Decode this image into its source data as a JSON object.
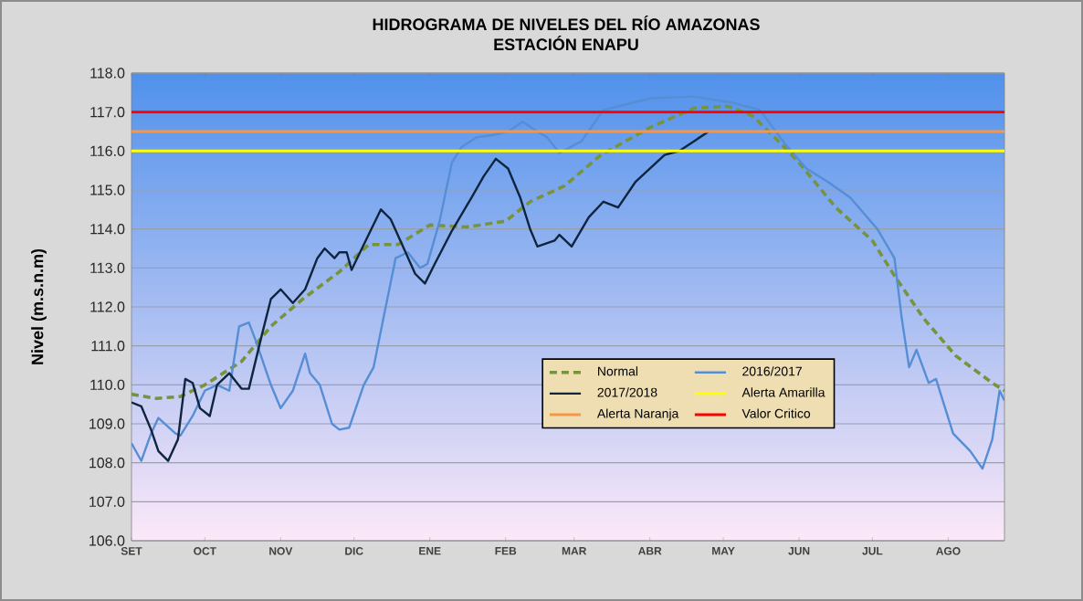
{
  "chart_data": {
    "type": "line",
    "title": "HIDROGRAMA DE NIVELES DEL RÍO AMAZONAS",
    "subtitle": "ESTACIÓN ENAPU",
    "ylabel": "Nivel (m.s.n.m)",
    "xlim": [
      "2017-09-01",
      "2018-08-24"
    ],
    "xticks": [
      {
        "value": "2017-09-01",
        "label": "SET"
      },
      {
        "value": "2017-10-01",
        "label": "OCT"
      },
      {
        "value": "2017-11-01",
        "label": "NOV"
      },
      {
        "value": "2017-12-01",
        "label": "DIC"
      },
      {
        "value": "2018-01-01",
        "label": "ENE"
      },
      {
        "value": "2018-02-01",
        "label": "FEB"
      },
      {
        "value": "2018-03-01",
        "label": "MAR"
      },
      {
        "value": "2018-04-01",
        "label": "ABR"
      },
      {
        "value": "2018-05-01",
        "label": "MAY"
      },
      {
        "value": "2018-06-01",
        "label": "JUN"
      },
      {
        "value": "2018-07-01",
        "label": "JUL"
      },
      {
        "value": "2018-08-01",
        "label": "AGO"
      }
    ],
    "ylim": [
      106,
      118
    ],
    "yticks": [
      {
        "value": 106,
        "label": "106.0"
      },
      {
        "value": 107,
        "label": "107.0"
      },
      {
        "value": 108,
        "label": "108.0"
      },
      {
        "value": 109,
        "label": "109.0"
      },
      {
        "value": 110,
        "label": "110.0"
      },
      {
        "value": 111,
        "label": "111.0"
      },
      {
        "value": 112,
        "label": "112.0"
      },
      {
        "value": 113,
        "label": "113.0"
      },
      {
        "value": 114,
        "label": "114.0"
      },
      {
        "value": 115,
        "label": "115.0"
      },
      {
        "value": 116,
        "label": "116.0"
      },
      {
        "value": 117,
        "label": "117.0"
      },
      {
        "value": 118,
        "label": "118.0"
      }
    ],
    "grid": "y",
    "legend": "bottom right",
    "marker": "none",
    "series": [
      {
        "name": "Normal",
        "color": "#77933c",
        "line_style": "dashed",
        "x": [
          "2017-09-01",
          "2017-09-11",
          "2017-09-21",
          "2017-10-01",
          "2017-10-16",
          "2017-10-28",
          "2017-11-10",
          "2017-11-25",
          "2017-12-07",
          "2017-12-19",
          "2018-01-01",
          "2018-01-16",
          "2018-02-01",
          "2018-02-11",
          "2018-02-25",
          "2018-03-12",
          "2018-04-01",
          "2018-04-19",
          "2018-05-03",
          "2018-05-13",
          "2018-05-22",
          "2018-06-01",
          "2018-06-16",
          "2018-07-01",
          "2018-07-10",
          "2018-07-22",
          "2018-08-04",
          "2018-08-19",
          "2018-08-24"
        ],
        "values": [
          109.76,
          109.65,
          109.7,
          110.0,
          110.6,
          111.5,
          112.2,
          112.9,
          113.6,
          113.6,
          114.1,
          114.05,
          114.2,
          114.7,
          115.1,
          115.9,
          116.6,
          117.1,
          117.15,
          116.9,
          116.35,
          115.7,
          114.55,
          113.7,
          112.8,
          111.7,
          110.75,
          110.05,
          109.85
        ]
      },
      {
        "name": "2016/2017",
        "color": "#558ed5",
        "line_style": "solid",
        "x": [
          "2017-09-01",
          "2017-09-05",
          "2017-09-09",
          "2017-09-12",
          "2017-09-19",
          "2017-09-21",
          "2017-09-26",
          "2017-10-01",
          "2017-10-06",
          "2017-10-11",
          "2017-10-15",
          "2017-10-19",
          "2017-10-22",
          "2017-10-28",
          "2017-11-01",
          "2017-11-06",
          "2017-11-11",
          "2017-11-13",
          "2017-11-17",
          "2017-11-22",
          "2017-11-25",
          "2017-11-29",
          "2017-12-05",
          "2017-12-09",
          "2017-12-13",
          "2017-12-18",
          "2017-12-23",
          "2017-12-28",
          "2017-12-31",
          "2018-01-05",
          "2018-01-10",
          "2018-01-14",
          "2018-01-20",
          "2018-01-26",
          "2018-02-02",
          "2018-02-08",
          "2018-02-14",
          "2018-02-18",
          "2018-02-23",
          "2018-03-04",
          "2018-03-13",
          "2018-04-01",
          "2018-04-19",
          "2018-05-04",
          "2018-05-16",
          "2018-05-26",
          "2018-06-04",
          "2018-06-13",
          "2018-06-22",
          "2018-07-03",
          "2018-07-10",
          "2018-07-13",
          "2018-07-16",
          "2018-07-19",
          "2018-07-24",
          "2018-07-27",
          "2018-08-03",
          "2018-08-10",
          "2018-08-15",
          "2018-08-19",
          "2018-08-22",
          "2018-08-24"
        ],
        "values": [
          108.5,
          108.05,
          108.75,
          109.15,
          108.75,
          108.7,
          109.2,
          109.85,
          110.0,
          109.85,
          111.5,
          111.6,
          111.1,
          110.0,
          109.4,
          109.85,
          110.8,
          110.3,
          110.0,
          109.0,
          108.85,
          108.9,
          110.0,
          110.45,
          111.7,
          113.25,
          113.4,
          113.0,
          113.1,
          114.2,
          115.7,
          116.1,
          116.35,
          116.4,
          116.5,
          116.75,
          116.5,
          116.35,
          115.95,
          116.25,
          117.05,
          117.35,
          117.4,
          117.25,
          117.05,
          116.2,
          115.55,
          115.2,
          114.8,
          114.0,
          113.25,
          111.7,
          110.45,
          110.9,
          110.05,
          110.15,
          108.75,
          108.3,
          107.85,
          108.6,
          109.85,
          109.6
        ]
      },
      {
        "name": "2017/2018",
        "color": "#0f243e",
        "line_style": "solid",
        "x": [
          "2017-09-01",
          "2017-09-05",
          "2017-09-09",
          "2017-09-12",
          "2017-09-16",
          "2017-09-20",
          "2017-09-23",
          "2017-09-26",
          "2017-09-29",
          "2017-10-03",
          "2017-10-06",
          "2017-10-11",
          "2017-10-16",
          "2017-10-19",
          "2017-10-24",
          "2017-10-28",
          "2017-11-01",
          "2017-11-06",
          "2017-11-11",
          "2017-11-16",
          "2017-11-19",
          "2017-11-23",
          "2017-11-25",
          "2017-11-28",
          "2017-11-30",
          "2017-12-05",
          "2017-12-12",
          "2017-12-16",
          "2017-12-21",
          "2017-12-26",
          "2017-12-30",
          "2018-01-03",
          "2018-01-10",
          "2018-01-18",
          "2018-01-23",
          "2018-01-28",
          "2018-02-02",
          "2018-02-07",
          "2018-02-11",
          "2018-02-14",
          "2018-02-21",
          "2018-02-23",
          "2018-02-28",
          "2018-03-07",
          "2018-03-13",
          "2018-03-19",
          "2018-03-26",
          "2018-04-07",
          "2018-04-13",
          "2018-04-19",
          "2018-04-25"
        ],
        "values": [
          109.55,
          109.45,
          108.85,
          108.3,
          108.05,
          108.6,
          110.15,
          110.05,
          109.4,
          109.2,
          110.0,
          110.3,
          109.9,
          109.9,
          111.2,
          112.2,
          112.45,
          112.1,
          112.45,
          113.25,
          113.5,
          113.25,
          113.4,
          113.4,
          112.95,
          113.6,
          114.5,
          114.25,
          113.55,
          112.85,
          112.6,
          113.1,
          113.95,
          114.8,
          115.35,
          115.8,
          115.55,
          114.8,
          114.0,
          113.55,
          113.7,
          113.85,
          113.55,
          114.3,
          114.7,
          114.55,
          115.2,
          115.9,
          116.0,
          116.25,
          116.5
        ]
      }
    ],
    "ref_lines": [
      {
        "axis": "y",
        "value": 116,
        "label": "Alerta Amarilla",
        "color": "#ffff00"
      },
      {
        "axis": "y",
        "value": 116.5,
        "label": "Alerta Naranja",
        "color": "#f79646"
      },
      {
        "axis": "y",
        "value": 117,
        "label": "Valor Critico",
        "color": "#ff0000"
      }
    ]
  }
}
